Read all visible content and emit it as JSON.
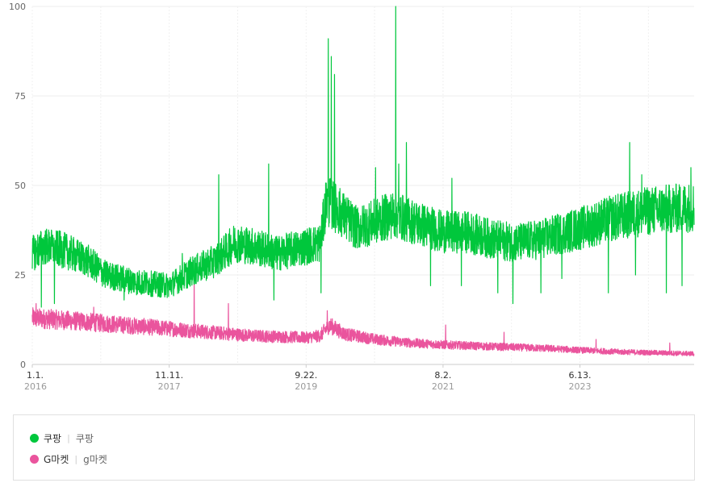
{
  "chart_data": {
    "type": "line",
    "ylim": [
      0,
      100
    ],
    "y_ticks": [
      "0",
      "25",
      "50",
      "75",
      "100"
    ],
    "x_ticks": [
      {
        "date": "1.1.",
        "year": "2016"
      },
      {
        "date": "11.11.",
        "year": "2017"
      },
      {
        "date": "9.22.",
        "year": "2019"
      },
      {
        "date": "8.2.",
        "year": "2021"
      },
      {
        "date": "6.13.",
        "year": "2023"
      }
    ],
    "grid": true,
    "legend_position": "bottom",
    "series": [
      {
        "name": "쿠팡",
        "sub": "쿠팡",
        "color": "#00c73c",
        "anchors": [
          [
            "2016-01-01",
            31
          ],
          [
            "2016-03-01",
            33
          ],
          [
            "2016-06-01",
            32
          ],
          [
            "2016-10-01",
            29
          ],
          [
            "2017-01-01",
            25
          ],
          [
            "2017-06-01",
            23
          ],
          [
            "2017-11-11",
            22
          ],
          [
            "2018-03-01",
            26
          ],
          [
            "2018-07-01",
            29
          ],
          [
            "2018-10-01",
            34
          ],
          [
            "2019-01-01",
            33
          ],
          [
            "2019-05-01",
            31
          ],
          [
            "2019-09-22",
            33
          ],
          [
            "2019-12-01",
            34
          ],
          [
            "2020-01-01",
            46
          ],
          [
            "2020-03-01",
            43
          ],
          [
            "2020-06-01",
            38
          ],
          [
            "2020-09-01",
            40
          ],
          [
            "2020-12-01",
            42
          ],
          [
            "2021-03-01",
            40
          ],
          [
            "2021-08-02",
            37
          ],
          [
            "2021-12-01",
            37
          ],
          [
            "2022-04-01",
            35
          ],
          [
            "2022-08-01",
            34
          ],
          [
            "2022-12-01",
            35
          ],
          [
            "2023-06-13",
            38
          ],
          [
            "2023-12-01",
            41
          ],
          [
            "2024-06-01",
            43
          ],
          [
            "2024-12-31",
            44
          ]
        ],
        "spikes": [
          [
            "2016-02-15",
            16
          ],
          [
            "2016-04-20",
            17
          ],
          [
            "2017-04-01",
            18
          ],
          [
            "2018-01-15",
            31
          ],
          [
            "2018-07-15",
            53
          ],
          [
            "2018-12-10",
            36
          ],
          [
            "2019-03-20",
            56
          ],
          [
            "2019-04-15",
            18
          ],
          [
            "2019-12-05",
            20
          ],
          [
            "2020-01-10",
            91
          ],
          [
            "2020-01-25",
            86
          ],
          [
            "2020-02-10",
            81
          ],
          [
            "2020-09-01",
            55
          ],
          [
            "2020-12-10",
            100
          ],
          [
            "2020-12-25",
            56
          ],
          [
            "2021-02-01",
            62
          ],
          [
            "2021-06-01",
            22
          ],
          [
            "2021-09-15",
            52
          ],
          [
            "2021-11-01",
            22
          ],
          [
            "2022-05-01",
            20
          ],
          [
            "2022-07-15",
            17
          ],
          [
            "2022-12-01",
            20
          ],
          [
            "2023-03-15",
            24
          ],
          [
            "2023-11-01",
            20
          ],
          [
            "2024-02-15",
            62
          ],
          [
            "2024-03-15",
            25
          ],
          [
            "2024-04-15",
            53
          ],
          [
            "2024-08-15",
            20
          ],
          [
            "2024-11-01",
            22
          ],
          [
            "2024-12-15",
            55
          ]
        ]
      },
      {
        "name": "G마켓",
        "sub": "g마켓",
        "color": "#ea549d",
        "anchors": [
          [
            "2016-01-01",
            13
          ],
          [
            "2016-09-01",
            12
          ],
          [
            "2017-04-01",
            11
          ],
          [
            "2017-11-11",
            10
          ],
          [
            "2018-06-01",
            9
          ],
          [
            "2019-01-01",
            8
          ],
          [
            "2019-09-22",
            7.5
          ],
          [
            "2019-12-01",
            8
          ],
          [
            "2020-01-15",
            11
          ],
          [
            "2020-04-01",
            8.5
          ],
          [
            "2020-09-01",
            7
          ],
          [
            "2021-03-01",
            6
          ],
          [
            "2021-08-02",
            5.5
          ],
          [
            "2022-04-01",
            5
          ],
          [
            "2023-01-01",
            4.5
          ],
          [
            "2023-06-13",
            4
          ],
          [
            "2024-01-01",
            3.5
          ],
          [
            "2024-12-31",
            3
          ]
        ],
        "spikes": [
          [
            "2016-01-20",
            17
          ],
          [
            "2016-11-01",
            16
          ],
          [
            "2018-03-15",
            25
          ],
          [
            "2018-09-01",
            17
          ],
          [
            "2020-01-05",
            15
          ],
          [
            "2021-08-15",
            11
          ],
          [
            "2022-06-01",
            9
          ],
          [
            "2023-09-01",
            7
          ],
          [
            "2024-09-01",
            6
          ]
        ]
      }
    ]
  }
}
